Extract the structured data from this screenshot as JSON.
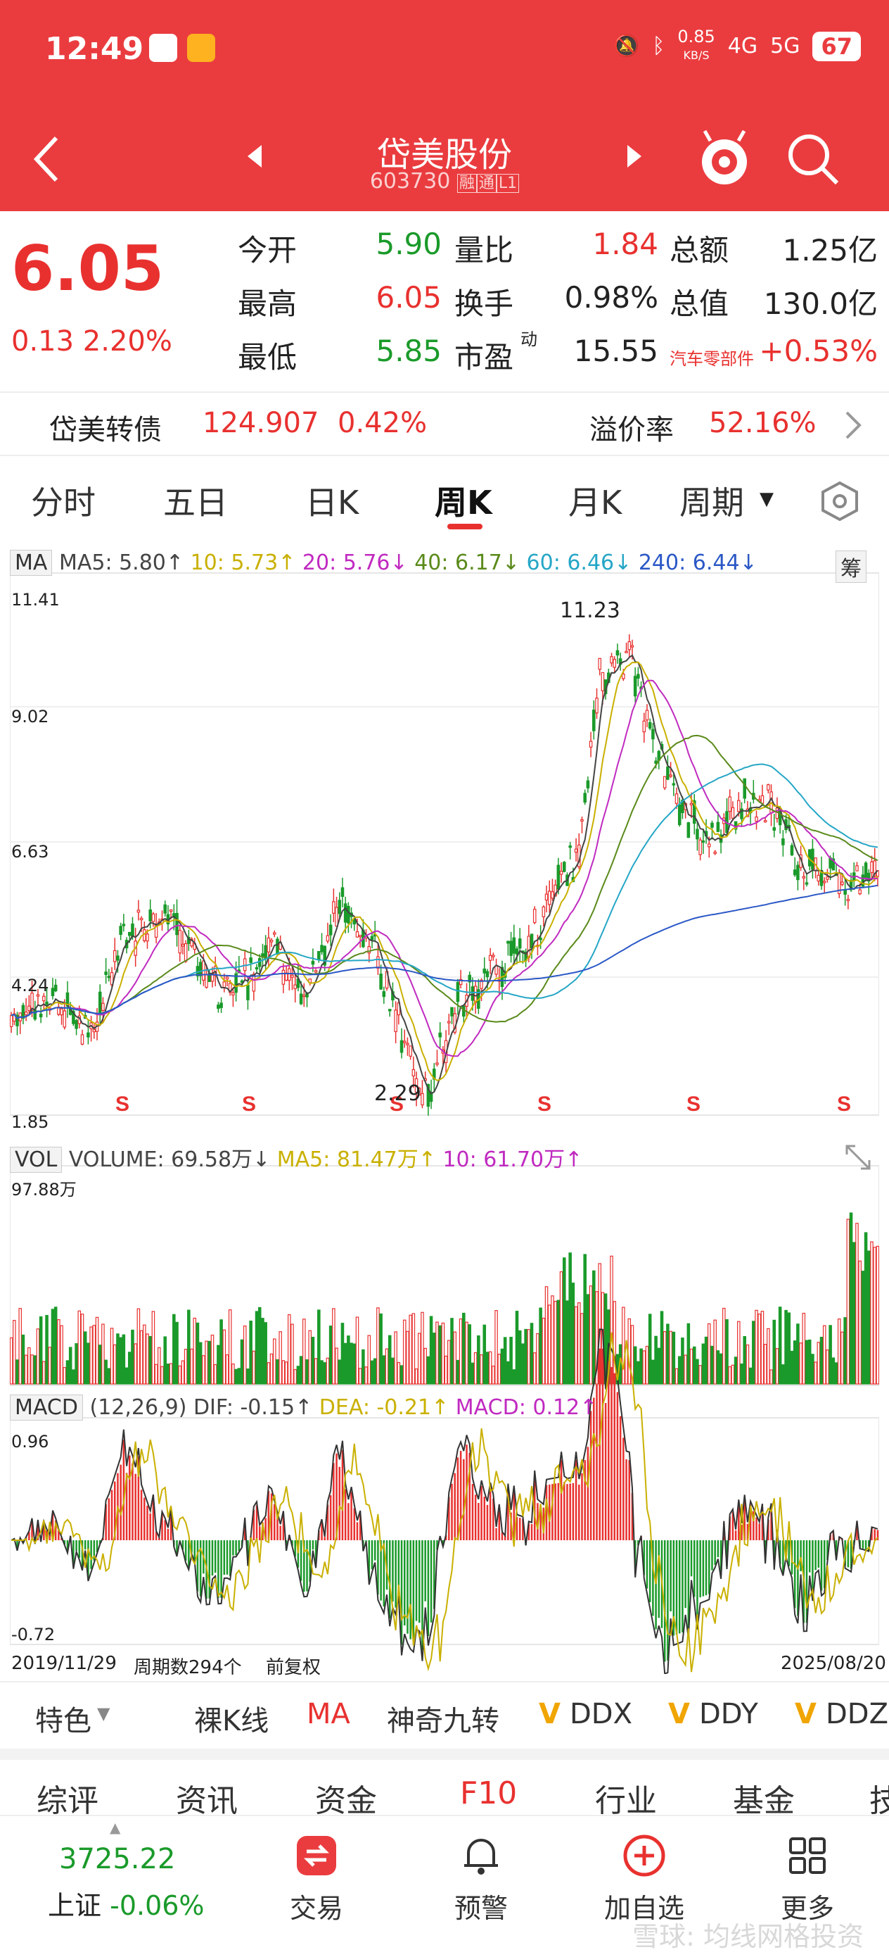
{
  "status_bar": {
    "time": "12:49",
    "net_speed": "0.85",
    "net_unit": "KB/S",
    "sig1": "4G",
    "sig2": "5G",
    "battery": "67"
  },
  "nav": {
    "back_icon": "chevron-left-icon",
    "title": "岱美股份",
    "code": "603730",
    "tag_rong": "融",
    "tag_tong": "通",
    "tag_l1": "L1"
  },
  "quote": {
    "price": "6.05",
    "change": "0.13",
    "change_pct": "2.20%",
    "fields": [
      {
        "label": "今开",
        "value": "5.90",
        "color": "green"
      },
      {
        "label": "量比",
        "value": "1.84",
        "color": "red"
      },
      {
        "label": "总额",
        "value": "1.25亿",
        "color": "black"
      },
      {
        "label": "最高",
        "value": "6.05",
        "color": "red"
      },
      {
        "label": "换手",
        "value": "0.98%",
        "color": "black"
      },
      {
        "label": "总值",
        "value": "130.0亿",
        "color": "black"
      },
      {
        "label": "最低",
        "value": "5.85",
        "color": "green"
      },
      {
        "label": "市盈",
        "value": "15.55",
        "color": "black"
      },
      {
        "label": "汽车零部件",
        "value": "+0.53%",
        "color": "red"
      }
    ],
    "pe_sup": "动"
  },
  "convertible": {
    "name": "岱美转债",
    "price": "124.907",
    "pct": "0.42%",
    "premium_label": "溢价率",
    "premium": "52.16%"
  },
  "tabs": [
    "分时",
    "五日",
    "日K",
    "周K",
    "月K",
    "周期"
  ],
  "active_tab": "周K",
  "ma_legend": {
    "tag": "MA",
    "ma5": "MA5: 5.80↑",
    "ma10": "10: 5.73↑",
    "ma20": "20: 5.76↓",
    "ma40": "40: 6.17↓",
    "ma60": "60: 6.46↓",
    "ma240": "240: 6.44↓",
    "chip": "筹"
  },
  "price_axis": {
    "top": "11.41",
    "l2": "9.02",
    "l3": "6.63",
    "l4": "4.24",
    "bottom": "1.85",
    "high_mark": "11.23",
    "low_mark": "2.29",
    "s_mark": "S"
  },
  "vol_legend": {
    "tag": "VOL",
    "volume": "VOLUME: 69.58万↓",
    "ma5": "MA5: 81.47万↑",
    "ma10": "10: 61.70万↑",
    "max": "97.88万"
  },
  "macd_legend": {
    "tag": "MACD",
    "params": "(12,26,9)",
    "dif": "DIF: -0.15↑",
    "dea": "DEA: -0.21↑",
    "macd": "MACD: 0.12↑",
    "top": "0.96",
    "bottom": "-0.72"
  },
  "date_axis": {
    "start": "2019/11/29",
    "weeks": "周期数294个",
    "adj": "前复权",
    "end": "2025/08/20"
  },
  "features": [
    "特色",
    "裸K线",
    "MA",
    "神奇九转",
    "DDX",
    "DDY",
    "DDZ"
  ],
  "f10_tabs": [
    "综评",
    "资讯",
    "资金",
    "F10",
    "行业",
    "基金",
    "技"
  ],
  "bottom_nav": {
    "index_value": "3725.22",
    "index_name": "上证",
    "index_pct": "-0.06%",
    "trade": "交易",
    "alert": "预警",
    "add": "加自选",
    "more": "更多"
  },
  "watermark": "雪球: 均线网格投资",
  "colors": {
    "brand_red": "#ea3c3f",
    "up": "#e8312f",
    "down": "#1a9a2a"
  }
}
